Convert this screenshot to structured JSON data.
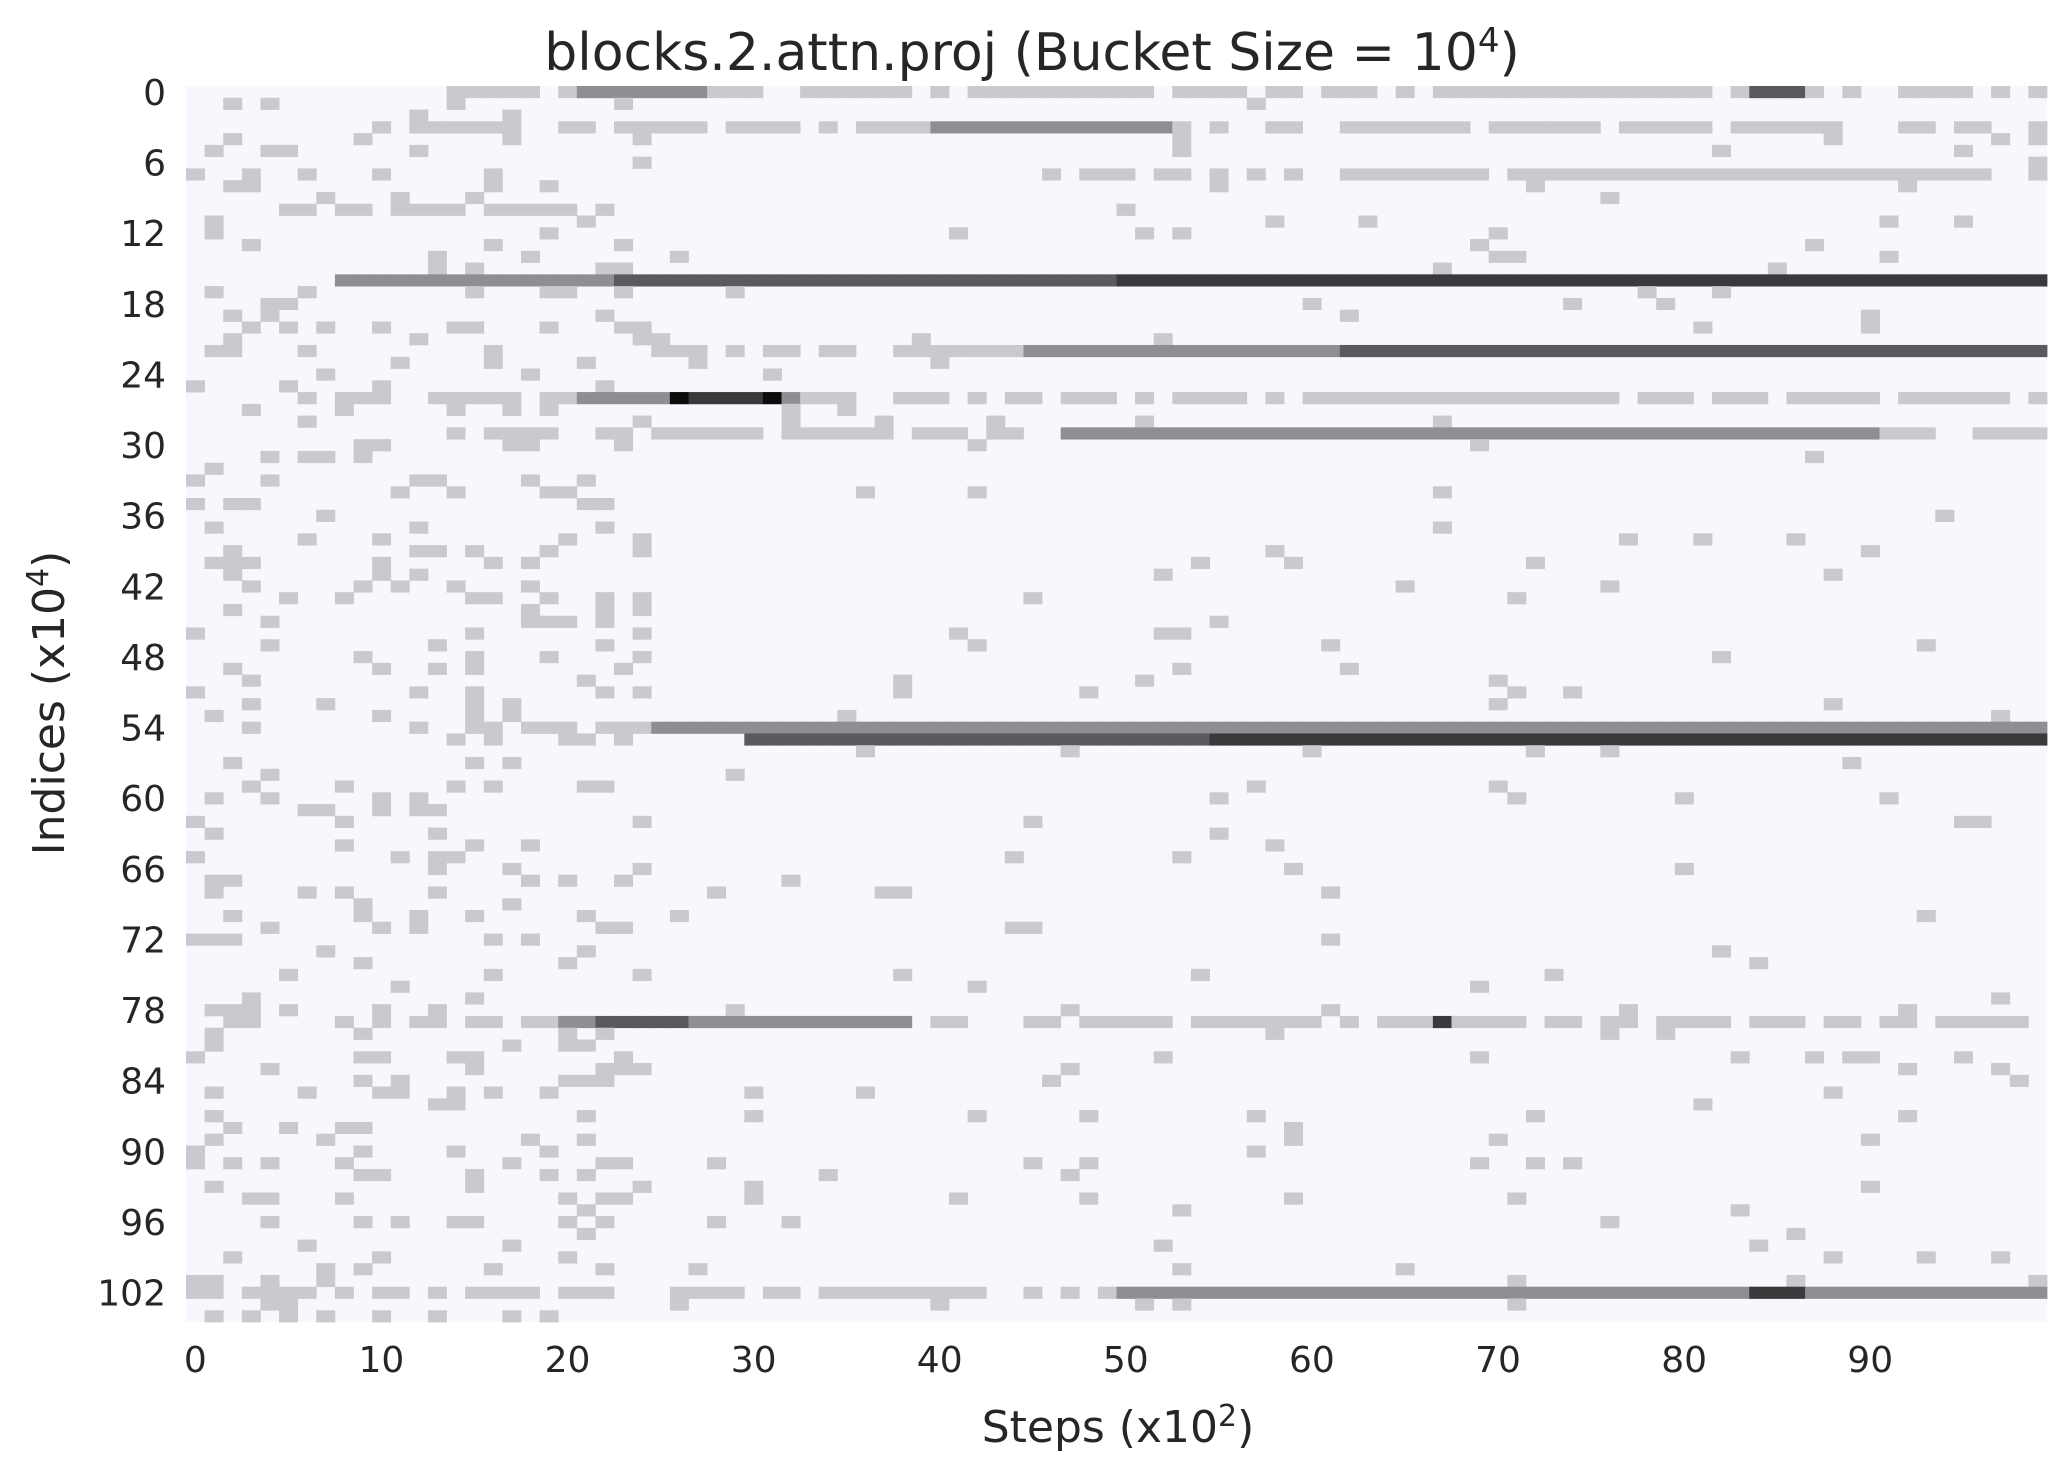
{
  "chart_data": {
    "type": "heatmap",
    "title": "blocks.2.attn.proj (Bucket Size = 10",
    "title_sup": "4",
    "title_end": ")",
    "xlabel": "Steps (x10",
    "xlabel_sup": "2",
    "xlabel_end": ")",
    "ylabel": "Indices (x10",
    "ylabel_sup": "4",
    "ylabel_end": ")",
    "x_ticks": [
      "0",
      "10",
      "20",
      "30",
      "40",
      "50",
      "60",
      "70",
      "80",
      "90"
    ],
    "y_ticks": [
      "0",
      "6",
      "12",
      "18",
      "24",
      "30",
      "36",
      "42",
      "48",
      "54",
      "60",
      "66",
      "72",
      "78",
      "84",
      "90",
      "96",
      "102"
    ],
    "n_steps": 100,
    "n_indices": 105,
    "background_color": "#f7f8fd",
    "colormap": [
      "#f7f8fd",
      "#c9c9d0",
      "#8e8e94",
      "#5a5a5e",
      "#3a3a3c",
      "#0c0c0c"
    ],
    "grid": false,
    "legend": "none",
    "rows": [
      {
        "index": 0,
        "x_start": 14,
        "x_end": 99,
        "level": 1
      },
      {
        "index": 0,
        "x_start": 21,
        "x_end": 27,
        "level": 2
      },
      {
        "index": 0,
        "x_start": 84,
        "x_end": 86,
        "level": 3
      },
      {
        "index": 3,
        "x_start": 12,
        "x_end": 99,
        "level": 1
      },
      {
        "index": 3,
        "x_start": 40,
        "x_end": 52,
        "level": 2
      },
      {
        "index": 7,
        "x_start": 46,
        "x_end": 99,
        "level": 1
      },
      {
        "index": 10,
        "x_start": 5,
        "x_end": 20,
        "level": 1
      },
      {
        "index": 16,
        "x_start": 8,
        "x_end": 99,
        "level": 2
      },
      {
        "index": 16,
        "x_start": 23,
        "x_end": 99,
        "level": 3
      },
      {
        "index": 16,
        "x_start": 50,
        "x_end": 99,
        "level": 4
      },
      {
        "index": 22,
        "x_start": 24,
        "x_end": 99,
        "level": 1
      },
      {
        "index": 22,
        "x_start": 45,
        "x_end": 99,
        "level": 2
      },
      {
        "index": 22,
        "x_start": 62,
        "x_end": 99,
        "level": 3
      },
      {
        "index": 26,
        "x_start": 6,
        "x_end": 99,
        "level": 1
      },
      {
        "index": 26,
        "x_start": 21,
        "x_end": 32,
        "level": 2
      },
      {
        "index": 26,
        "x_start": 26,
        "x_end": 31,
        "level": 4
      },
      {
        "index": 26,
        "x_start": 26,
        "x_end": 26,
        "level": 5
      },
      {
        "index": 26,
        "x_start": 31,
        "x_end": 31,
        "level": 5
      },
      {
        "index": 29,
        "x_start": 16,
        "x_end": 99,
        "level": 1
      },
      {
        "index": 29,
        "x_start": 47,
        "x_end": 90,
        "level": 2
      },
      {
        "index": 40,
        "x_start": 1,
        "x_end": 4,
        "level": 1
      },
      {
        "index": 54,
        "x_start": 14,
        "x_end": 99,
        "level": 1
      },
      {
        "index": 54,
        "x_start": 25,
        "x_end": 99,
        "level": 2
      },
      {
        "index": 55,
        "x_start": 30,
        "x_end": 99,
        "level": 3
      },
      {
        "index": 55,
        "x_start": 55,
        "x_end": 99,
        "level": 4
      },
      {
        "index": 79,
        "x_start": 13,
        "x_end": 99,
        "level": 1
      },
      {
        "index": 79,
        "x_start": 20,
        "x_end": 38,
        "level": 2
      },
      {
        "index": 79,
        "x_start": 22,
        "x_end": 26,
        "level": 3
      },
      {
        "index": 79,
        "x_start": 67,
        "x_end": 67,
        "level": 4
      },
      {
        "index": 102,
        "x_start": 1,
        "x_end": 99,
        "level": 1
      },
      {
        "index": 102,
        "x_start": 50,
        "x_end": 99,
        "level": 2
      },
      {
        "index": 102,
        "x_start": 84,
        "x_end": 86,
        "level": 4
      }
    ],
    "scatter_level": 1,
    "scatter_density_early": 0.16,
    "scatter_density_late": 0.025
  }
}
